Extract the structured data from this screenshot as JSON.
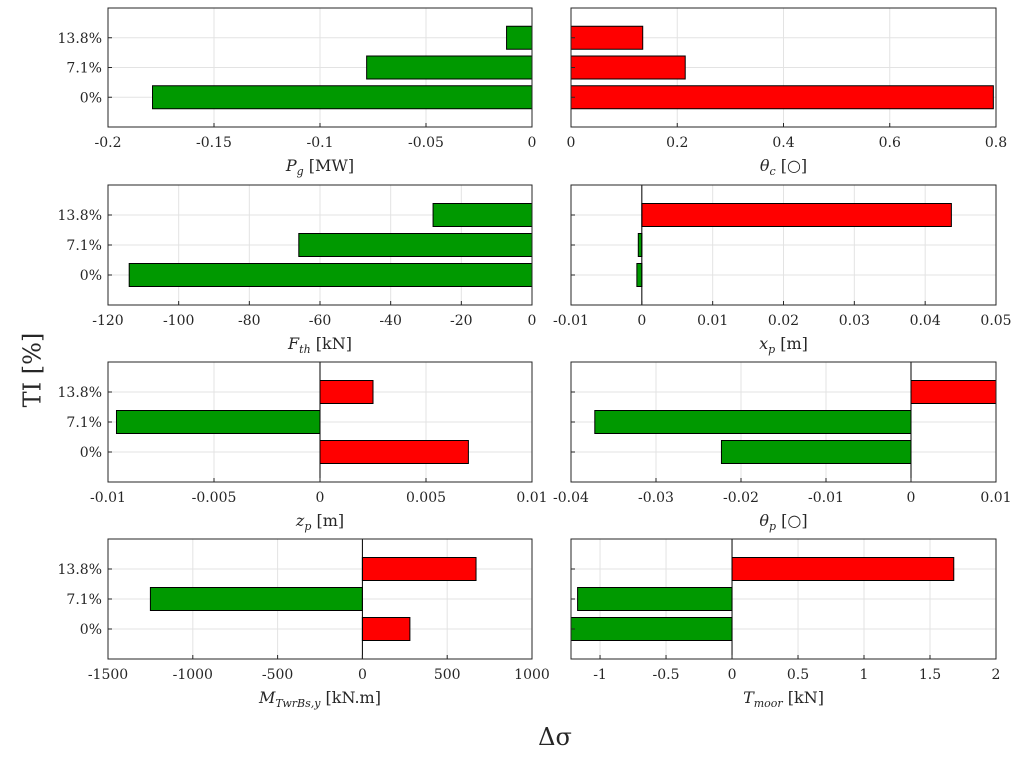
{
  "figure": {
    "ylabel": "TI [%]",
    "xlabel": "Δσ"
  },
  "colors": {
    "positive": "#ff0000",
    "negative": "#009900",
    "edge": "#000000",
    "grid": "#e3e3e3"
  },
  "chart_data": [
    {
      "type": "bar",
      "orientation": "horizontal",
      "categories": [
        "0%",
        "7.1%",
        "13.8%"
      ],
      "values": [
        -0.179,
        -0.078,
        -0.012
      ],
      "xlim": [
        -0.2,
        0
      ],
      "xticks": [
        -0.2,
        -0.15,
        -0.1,
        -0.05,
        0
      ],
      "xtick_labels": [
        "-0.2",
        "-0.15",
        "-0.1",
        "-0.05",
        "0"
      ],
      "xlabel_sym": "P",
      "xlabel_sub": "g",
      "xlabel_unit": "[MW]",
      "grid": true
    },
    {
      "type": "bar",
      "orientation": "horizontal",
      "categories": [
        "0%",
        "7.1%",
        "13.8%"
      ],
      "values": [
        0.795,
        0.215,
        0.135
      ],
      "xlim": [
        0,
        0.8
      ],
      "xticks": [
        0,
        0.2,
        0.4,
        0.6,
        0.8
      ],
      "xtick_labels": [
        "0",
        "0.2",
        "0.4",
        "0.6",
        "0.8"
      ],
      "xlabel_sym": "θ",
      "xlabel_sub": "c",
      "xlabel_unit": "[○]",
      "grid": true
    },
    {
      "type": "bar",
      "orientation": "horizontal",
      "categories": [
        "0%",
        "7.1%",
        "13.8%"
      ],
      "values": [
        -114,
        -66,
        -28
      ],
      "xlim": [
        -120,
        0
      ],
      "xticks": [
        -120,
        -100,
        -80,
        -60,
        -40,
        -20,
        0
      ],
      "xtick_labels": [
        "-120",
        "-100",
        "-80",
        "-60",
        "-40",
        "-20",
        "0"
      ],
      "xlabel_sym": "F",
      "xlabel_sub": "th",
      "xlabel_unit": "[kN]",
      "grid": true
    },
    {
      "type": "bar",
      "orientation": "horizontal",
      "categories": [
        "0%",
        "7.1%",
        "13.8%"
      ],
      "values": [
        -0.0007,
        -0.0005,
        0.0437
      ],
      "xlim": [
        -0.01,
        0.05
      ],
      "xticks": [
        -0.01,
        0,
        0.01,
        0.02,
        0.03,
        0.04,
        0.05
      ],
      "xtick_labels": [
        "-0.01",
        "0",
        "0.01",
        "0.02",
        "0.03",
        "0.04",
        "0.05"
      ],
      "xlabel_sym": "x",
      "xlabel_sub": "p",
      "xlabel_unit": "[m]",
      "grid": true
    },
    {
      "type": "bar",
      "orientation": "horizontal",
      "categories": [
        "0%",
        "7.1%",
        "13.8%"
      ],
      "values": [
        0.007,
        -0.0096,
        0.0025
      ],
      "xlim": [
        -0.01,
        0.01
      ],
      "xticks": [
        -0.01,
        -0.005,
        0,
        0.005,
        0.01
      ],
      "xtick_labels": [
        "-0.01",
        "-0.005",
        "0",
        "0.005",
        "0.01"
      ],
      "xlabel_sym": "z",
      "xlabel_sub": "p",
      "xlabel_unit": "[m]",
      "grid": true
    },
    {
      "type": "bar",
      "orientation": "horizontal",
      "categories": [
        "0%",
        "7.1%",
        "13.8%"
      ],
      "values": [
        -0.0223,
        -0.0372,
        0.01
      ],
      "xlim": [
        -0.04,
        0.01
      ],
      "xticks": [
        -0.04,
        -0.03,
        -0.02,
        -0.01,
        0,
        0.01
      ],
      "xtick_labels": [
        "-0.04",
        "-0.03",
        "-0.02",
        "-0.01",
        "0",
        "0.01"
      ],
      "xlabel_sym": "θ",
      "xlabel_sub": "p",
      "xlabel_unit": "[○]",
      "grid": true
    },
    {
      "type": "bar",
      "orientation": "horizontal",
      "categories": [
        "0%",
        "7.1%",
        "13.8%"
      ],
      "values": [
        280,
        -1250,
        670
      ],
      "xlim": [
        -1500,
        1000
      ],
      "xticks": [
        -1500,
        -1000,
        -500,
        0,
        500,
        1000
      ],
      "xtick_labels": [
        "-1500",
        "-1000",
        "-500",
        "0",
        "500",
        "1000"
      ],
      "xlabel_sym": "M",
      "xlabel_sub": "TwrBs,y",
      "xlabel_unit": "[kN.m]",
      "grid": true
    },
    {
      "type": "bar",
      "orientation": "horizontal",
      "categories": [
        "0%",
        "7.1%",
        "13.8%"
      ],
      "values": [
        -1.22,
        -1.17,
        1.68
      ],
      "xlim": [
        -1.22,
        2
      ],
      "xticks": [
        -1,
        -0.5,
        0,
        0.5,
        1,
        1.5,
        2
      ],
      "xtick_labels": [
        "-1",
        "-0.5",
        "0",
        "0.5",
        "1",
        "1.5",
        "2"
      ],
      "xlabel_sym": "T",
      "xlabel_sub": "moor",
      "xlabel_unit": "[kN]",
      "grid": true
    }
  ]
}
